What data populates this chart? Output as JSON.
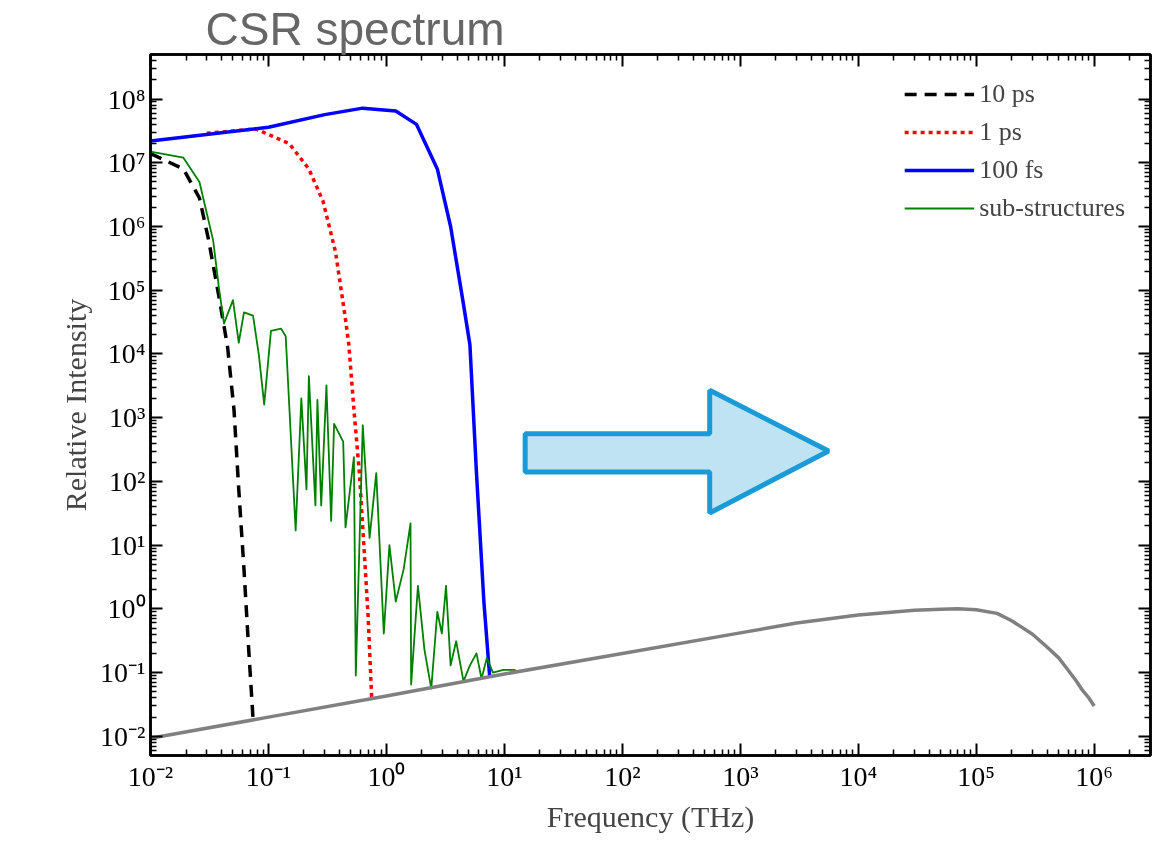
{
  "chart_data": {
    "type": "line",
    "title": "CSR spectrum",
    "xlabel": "Frequency (THz)",
    "ylabel": "Relative Intensity",
    "log": "xy",
    "grid": false,
    "legend": "top right",
    "xlim": [
      0.01,
      3000000
    ],
    "ylim": [
      0.005,
      500000000
    ],
    "xticks": [
      {
        "value": 0.01,
        "label": "10⁻²"
      },
      {
        "value": 0.1,
        "label": "10⁻¹"
      },
      {
        "value": 1,
        "label": "10⁰"
      },
      {
        "value": 10,
        "label": "10¹"
      },
      {
        "value": 100,
        "label": "10²"
      },
      {
        "value": 1000,
        "label": "10³"
      },
      {
        "value": 10000,
        "label": "10⁴"
      },
      {
        "value": 100000,
        "label": "10⁵"
      },
      {
        "value": 1000000,
        "label": "10⁶"
      }
    ],
    "yticks": [
      {
        "value": 0.01,
        "label": "10⁻²"
      },
      {
        "value": 0.1,
        "label": "10⁻¹"
      },
      {
        "value": 1,
        "label": "10⁰"
      },
      {
        "value": 10,
        "label": "10¹"
      },
      {
        "value": 100,
        "label": "10²"
      },
      {
        "value": 1000,
        "label": "10³"
      },
      {
        "value": 10000,
        "label": "10⁴"
      },
      {
        "value": 100000,
        "label": "10⁵"
      },
      {
        "value": 1000000,
        "label": "10⁶"
      },
      {
        "value": 10000000,
        "label": "10⁷"
      },
      {
        "value": 100000000,
        "label": "10⁸"
      }
    ],
    "series": [
      {
        "name": "10 ps",
        "color": "#000000",
        "line_style": "dashed",
        "x": [
          0.01,
          0.019,
          0.026,
          0.031,
          0.038,
          0.045,
          0.051,
          0.056,
          0.062,
          0.068,
          0.074
        ],
        "values": [
          14000000,
          8000000,
          2800000,
          630000,
          80000,
          13000,
          1350,
          75,
          4.2,
          0.23,
          0.019
        ]
      },
      {
        "name": "1 ps",
        "color": "#ff0000",
        "line_style": "dotted",
        "x": [
          0.03,
          0.078,
          0.15,
          0.22,
          0.29,
          0.37,
          0.45,
          0.48,
          0.53,
          0.59,
          0.65,
          0.7,
          0.75
        ],
        "values": [
          29000000,
          34000000,
          20000000,
          8000000,
          2500000,
          400000,
          35000,
          14000,
          1350,
          135,
          7.4,
          0.74,
          0.04
        ]
      },
      {
        "name": "100 fs",
        "color": "#0000ff",
        "line_style": "solid",
        "x": [
          0.01,
          0.1,
          0.3,
          0.63,
          1.2,
          1.8,
          2.7,
          3.5,
          4.5,
          5.1,
          5.8,
          6.7,
          7.5
        ],
        "values": [
          22000000,
          36000000,
          57000000,
          72000000,
          65000000,
          40000000,
          8000000,
          1000000,
          60000,
          14000,
          135,
          1.3,
          0.087
        ]
      },
      {
        "name": "sub-structures",
        "color": "#008000",
        "line_style": "solid",
        "x": [
          0.01,
          0.019,
          0.026,
          0.034,
          0.038,
          0.042,
          0.05,
          0.056,
          0.062,
          0.074,
          0.083,
          0.092,
          0.105,
          0.128,
          0.14,
          0.17,
          0.19,
          0.21,
          0.22,
          0.25,
          0.26,
          0.28,
          0.31,
          0.34,
          0.36,
          0.43,
          0.45,
          0.53,
          0.55,
          0.63,
          0.72,
          0.82,
          0.95,
          1.06,
          1.2,
          1.4,
          1.6,
          1.62,
          1.85,
          2.1,
          2.4,
          2.7,
          2.95,
          3.2,
          3.5,
          3.9,
          4.5,
          5.1,
          5.8,
          6.4,
          7.1,
          8,
          9.8,
          12,
          13
        ],
        "values": [
          15000000,
          12000000,
          5000000,
          600000,
          110000,
          30000,
          70000,
          15000,
          45000,
          40000,
          9500,
          1600,
          23000,
          25000,
          19000,
          17,
          2000,
          75,
          4500,
          42,
          1900,
          42,
          3200,
          24,
          800,
          420,
          19,
          240,
          0.09,
          760,
          13,
          135,
          0.41,
          10,
          1.3,
          4.2,
          22,
          0.065,
          2.3,
          0.23,
          0.056,
          0.9,
          0.41,
          2.3,
          0.13,
          0.31,
          0.073,
          0.13,
          0.2,
          0.08,
          0.17,
          0.1,
          0.11,
          0.11,
          0.105
        ]
      },
      {
        "color": "#808080",
        "line_style": "solid",
        "x": [
          0.01,
          0.1,
          1,
          10,
          100,
          1000,
          3000,
          10000,
          30000,
          50000,
          70000,
          100000,
          150000,
          200000,
          300000,
          400000,
          500000,
          600000,
          700000,
          800000,
          900000,
          1000000
        ],
        "values": [
          0.0093,
          0.02,
          0.043,
          0.095,
          0.2,
          0.42,
          0.6,
          0.8,
          0.95,
          0.99,
          1.0,
          0.97,
          0.85,
          0.65,
          0.4,
          0.25,
          0.17,
          0.11,
          0.075,
          0.052,
          0.04,
          0.03
        ]
      }
    ]
  }
}
